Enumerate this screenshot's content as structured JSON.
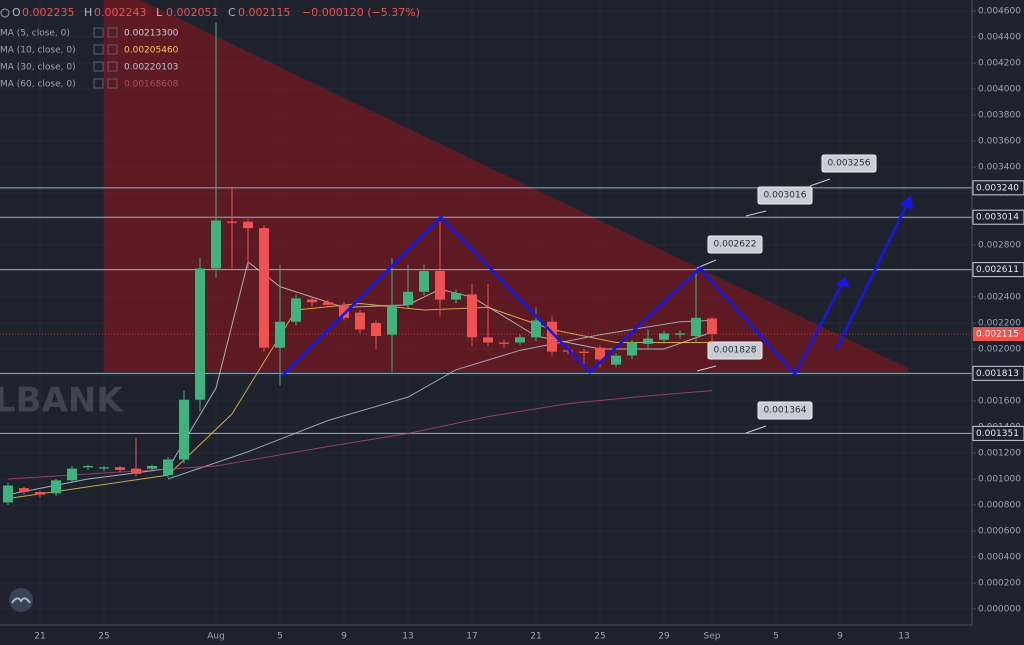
{
  "chart_data": {
    "type": "candlestick",
    "header": {
      "items": [
        {
          "label": "O",
          "value": "0.002235"
        },
        {
          "label": "H",
          "value": "0.002243"
        },
        {
          "label": "L",
          "value": "0.002051"
        },
        {
          "label": "C",
          "value": "0.002115"
        }
      ],
      "change": "−0.000120 (−5.37%)"
    },
    "watermark": "LBANK",
    "categories": [
      null,
      null,
      "21",
      null,
      null,
      null,
      "25",
      null,
      null,
      null,
      null,
      null,
      null,
      "Aug",
      null,
      null,
      null,
      "5",
      null,
      null,
      null,
      "9",
      null,
      null,
      null,
      "13",
      null,
      null,
      null,
      "17",
      null,
      null,
      null,
      "21",
      null,
      null,
      null,
      "25",
      null,
      null,
      null,
      "29",
      null,
      null,
      "Sep",
      null,
      null,
      null,
      "5",
      null,
      null,
      null,
      "9",
      null,
      null,
      null,
      "13",
      null,
      null,
      null
    ],
    "candles": {
      "up_color": "#3fb27f",
      "down_color": "#ef5350",
      "open": [
        0.00082,
        0.00093,
        0.0009,
        0.00089,
        0.00099,
        0.00109,
        0.00108,
        0.00109,
        0.00108,
        0.00108,
        0.00103,
        0.00115,
        0.00161,
        0.00262,
        0.00298,
        0.00298,
        0.00293,
        0.00201,
        0.00221,
        0.00238,
        0.00236,
        0.00234,
        0.00228,
        0.0022,
        0.00211,
        0.00234,
        0.00244,
        0.0026,
        0.00238,
        0.00242,
        0.00209,
        0.00205,
        0.00205,
        0.00209,
        0.00221,
        0.00199,
        0.00198,
        0.00201,
        0.00188,
        0.00195,
        0.00204,
        0.00207,
        0.00211,
        0.0021,
        0.002235,
        null,
        null,
        null,
        null,
        null,
        null,
        null,
        null,
        null,
        null,
        null,
        null,
        null,
        null,
        null
      ],
      "high": [
        0.00097,
        0.00094,
        0.00091,
        0.001,
        0.0011,
        0.00111,
        0.0011,
        0.0011,
        0.00132,
        0.00111,
        0.00117,
        0.00168,
        0.0027,
        0.00451,
        0.00325,
        0.003,
        0.00295,
        0.00265,
        0.00242,
        0.0024,
        0.00238,
        0.00236,
        0.0023,
        0.00222,
        0.0027,
        0.00265,
        0.00265,
        0.00298,
        0.00246,
        0.0025,
        0.0025,
        0.00207,
        0.00211,
        0.00232,
        0.00225,
        0.00202,
        0.002,
        0.00203,
        0.00197,
        0.00207,
        0.00215,
        0.00214,
        0.00214,
        0.00262,
        0.002243,
        null,
        null,
        null,
        null,
        null,
        null,
        null,
        null,
        null,
        null,
        null,
        null,
        null,
        null,
        null
      ],
      "low": [
        0.0008,
        0.00088,
        0.00086,
        0.00087,
        0.00097,
        0.00107,
        0.00106,
        0.00105,
        0.00102,
        0.00106,
        0.00101,
        0.00112,
        0.00152,
        0.00255,
        0.00262,
        0.00262,
        0.00198,
        0.00172,
        0.00218,
        0.00233,
        0.00232,
        0.00222,
        0.00212,
        0.002,
        0.00182,
        0.00231,
        0.00241,
        0.00225,
        0.00235,
        0.00202,
        0.00202,
        0.00201,
        0.00203,
        0.00206,
        0.00195,
        0.00196,
        0.00188,
        0.00186,
        0.00186,
        0.00192,
        0.002,
        0.00204,
        0.00208,
        0.00205,
        0.002051,
        null,
        null,
        null,
        null,
        null,
        null,
        null,
        null,
        null,
        null,
        null,
        null,
        null,
        null,
        null
      ],
      "close": [
        0.00095,
        0.0009,
        0.00088,
        0.00099,
        0.00108,
        0.0011,
        0.00109,
        0.00107,
        0.00104,
        0.0011,
        0.00115,
        0.00161,
        0.00262,
        0.00299,
        0.00297,
        0.00293,
        0.00201,
        0.00221,
        0.00239,
        0.00236,
        0.00234,
        0.00224,
        0.00215,
        0.0021,
        0.00234,
        0.00244,
        0.0026,
        0.00238,
        0.00243,
        0.00209,
        0.00205,
        0.00204,
        0.00209,
        0.00222,
        0.00198,
        0.00198,
        0.00197,
        0.00192,
        0.00195,
        0.00205,
        0.00208,
        0.00212,
        0.00212,
        0.00224,
        0.002115,
        null,
        null,
        null,
        null,
        null,
        null,
        null,
        null,
        null,
        null,
        null,
        null,
        null,
        null,
        null
      ]
    },
    "series": [
      {
        "name": "MA (5, close, 0)",
        "value_label": "0.00213300",
        "color": "#c9cfdc",
        "x": [
          0,
          5,
          10,
          13,
          15,
          17,
          21,
          25,
          27,
          29,
          33,
          37,
          41,
          44
        ],
        "values": [
          0.00088,
          0.001,
          0.00108,
          0.0017,
          0.00267,
          0.00248,
          0.00232,
          0.00234,
          0.00246,
          0.0024,
          0.0021,
          0.002,
          0.002,
          0.00213
        ]
      },
      {
        "name": "MA (10, close, 0)",
        "value_label": "0.00205460",
        "color": "#f2c94c",
        "x": [
          0,
          10,
          14,
          18,
          22,
          26,
          30,
          34,
          38,
          44
        ],
        "values": [
          0.00085,
          0.00103,
          0.0015,
          0.0023,
          0.00235,
          0.0023,
          0.00232,
          0.00215,
          0.00205,
          0.00205
        ]
      },
      {
        "name": "MA (30, close, 0)",
        "value_label": "0.00220103",
        "color": "#b8c2d6",
        "x": [
          10,
          15,
          20,
          25,
          28,
          32,
          37,
          42,
          44
        ],
        "values": [
          0.001,
          0.00121,
          0.00145,
          0.00163,
          0.00184,
          0.00199,
          0.00211,
          0.00221,
          0.00222
        ]
      },
      {
        "name": "MA (60, close, 0)",
        "value_label": "0.00168608",
        "color": "#b04a6a",
        "x": [
          0,
          13,
          20,
          25,
          30,
          35,
          40,
          44
        ],
        "values": [
          0.001,
          0.0011,
          0.00125,
          0.00135,
          0.00148,
          0.00158,
          0.00164,
          0.00168
        ]
      }
    ],
    "levels": [
      {
        "value": 0.00324,
        "label": "0.003240"
      },
      {
        "value": 0.003014,
        "label": "0.003014"
      },
      {
        "value": 0.002611,
        "label": "0.002611"
      },
      {
        "value": 0.001813,
        "label": "0.001813"
      },
      {
        "value": 0.001351,
        "label": "0.001351"
      }
    ],
    "callouts": [
      "0.003256",
      "0.003016",
      "0.002622",
      "0.001828",
      "0.001364"
    ],
    "last_price": {
      "value": 0.002115,
      "label": "0.002115"
    },
    "ylim": [
      -0.000123,
      0.004685
    ],
    "yticks": [
      {
        "value": 0,
        "label": "0.000000"
      },
      {
        "value": 0.0002,
        "label": "0.000200"
      },
      {
        "value": 0.0004,
        "label": "0.000400"
      },
      {
        "value": 0.0006,
        "label": "0.000600"
      },
      {
        "value": 0.0008,
        "label": "0.000800"
      },
      {
        "value": 0.001,
        "label": "0.001000"
      },
      {
        "value": 0.0012,
        "label": "0.001200"
      },
      {
        "value": 0.0014,
        "label": "0.001400"
      },
      {
        "value": 0.0016,
        "label": "0.001600"
      },
      {
        "value": 0.0018,
        "label": "0.001800"
      },
      {
        "value": 0.002,
        "label": "0.002000"
      },
      {
        "value": 0.0022,
        "label": "0.002200"
      },
      {
        "value": 0.0024,
        "label": "0.002400"
      },
      {
        "value": 0.0026,
        "label": "0.002600"
      },
      {
        "value": 0.0028,
        "label": "0.002800"
      },
      {
        "value": 0.003,
        "label": "0.003000"
      },
      {
        "value": 0.0032,
        "label": "0.003200"
      },
      {
        "value": 0.0034,
        "label": "0.003400"
      },
      {
        "value": 0.0036,
        "label": "0.003600"
      },
      {
        "value": 0.0038,
        "label": "0.003800"
      },
      {
        "value": 0.004,
        "label": "0.004000"
      },
      {
        "value": 0.0042,
        "label": "0.004200"
      },
      {
        "value": 0.0044,
        "label": "0.004400"
      },
      {
        "value": 0.0046,
        "label": "0.004600"
      }
    ],
    "grid": true
  }
}
